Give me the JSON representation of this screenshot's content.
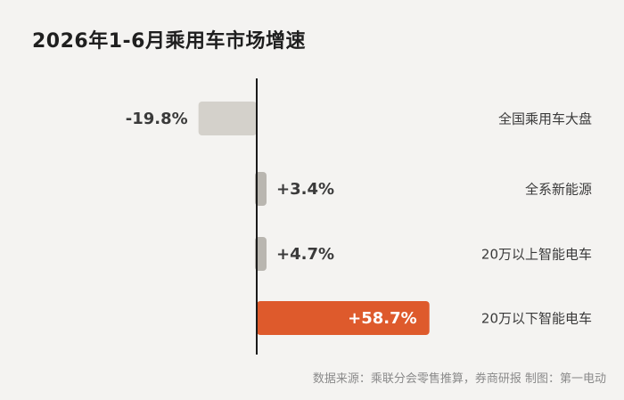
{
  "title": "2026年1-6月乘用车市场增速",
  "source": "数据来源：乘联分会零售推算，券商研报  制图：第一电动",
  "chart_data": {
    "type": "bar",
    "orientation": "horizontal",
    "title": "2026年1-6月乘用车市场增速",
    "categories": [
      "全国乘用车大盘",
      "全系新能源",
      "20万以上智能电车",
      "20万以下智能电车"
    ],
    "values": [
      -19.8,
      3.4,
      4.7,
      58.7
    ],
    "value_labels": [
      "-19.8%",
      "+3.4%",
      "+4.7%",
      "+58.7%"
    ],
    "unit": "%",
    "xlim": [
      -21,
      72
    ],
    "colors": {
      "default_bar": "#d4d1cb",
      "small_bar": "#b9b6b0",
      "highlight_bar": "#de5a2c",
      "axis": "#1a1a1a",
      "label_text": "#3a3a3a",
      "highlight_label_text": "#ffffff"
    },
    "highlight_index": 3,
    "grid": false,
    "legend": "none"
  }
}
